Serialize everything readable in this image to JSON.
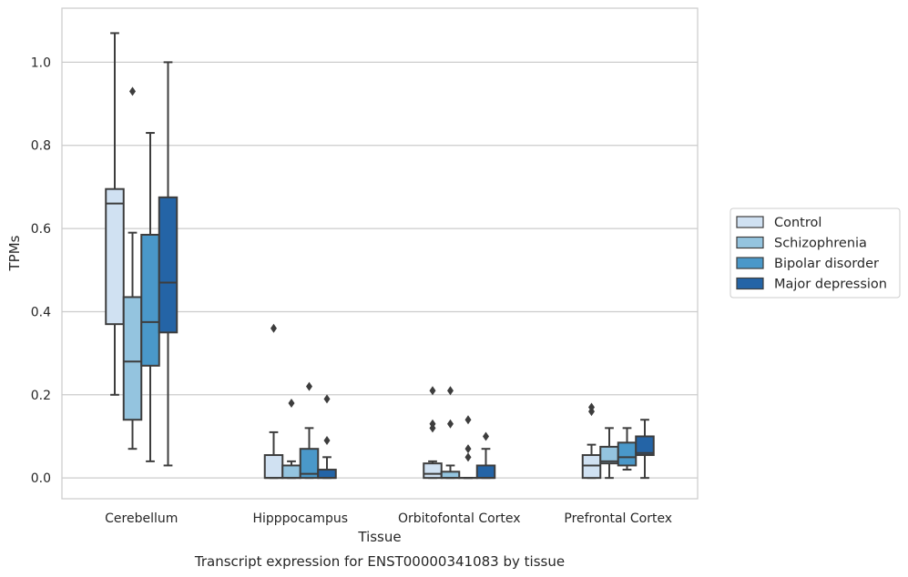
{
  "chart_data": {
    "type": "box",
    "title": "",
    "caption": "Transcript expression for ENST00000341083 by tissue",
    "xlabel": "Tissue",
    "ylabel": "TPMs",
    "ylim": [
      -0.05,
      1.13
    ],
    "yticks": [
      0.0,
      0.2,
      0.4,
      0.6,
      0.8,
      1.0
    ],
    "ytick_labels": [
      "0.0",
      "0.2",
      "0.4",
      "0.6",
      "0.8",
      "1.0"
    ],
    "grid": "horizontal",
    "legend_position": "outside-right",
    "categories": [
      "Cerebellum",
      "Hipppocampus",
      "Orbitofontal Cortex",
      "Prefrontal Cortex"
    ],
    "series": [
      {
        "name": "Control",
        "color": "#d0e1f2",
        "boxes": [
          {
            "whislo": 0.2,
            "q1": 0.37,
            "med": 0.66,
            "q3": 0.695,
            "whishi": 1.07,
            "fliers": []
          },
          {
            "whislo": 0.0,
            "q1": 0.0,
            "med": 0.0,
            "q3": 0.055,
            "whishi": 0.11,
            "fliers": [
              0.36
            ]
          },
          {
            "whislo": 0.0,
            "q1": 0.0,
            "med": 0.01,
            "q3": 0.035,
            "whishi": 0.04,
            "fliers": [
              0.12,
              0.13,
              0.21
            ]
          },
          {
            "whislo": 0.0,
            "q1": 0.0,
            "med": 0.03,
            "q3": 0.055,
            "whishi": 0.08,
            "fliers": [
              0.16,
              0.17
            ]
          }
        ]
      },
      {
        "name": "Schizophrenia",
        "color": "#94c4df",
        "boxes": [
          {
            "whislo": 0.07,
            "q1": 0.14,
            "med": 0.28,
            "q3": 0.435,
            "whishi": 0.59,
            "fliers": [
              0.93
            ]
          },
          {
            "whislo": 0.0,
            "q1": 0.0,
            "med": 0.0,
            "q3": 0.03,
            "whishi": 0.04,
            "fliers": [
              0.18
            ]
          },
          {
            "whislo": 0.0,
            "q1": 0.0,
            "med": 0.0,
            "q3": 0.015,
            "whishi": 0.03,
            "fliers": [
              0.13,
              0.21
            ]
          },
          {
            "whislo": 0.0,
            "q1": 0.035,
            "med": 0.04,
            "q3": 0.075,
            "whishi": 0.12,
            "fliers": []
          }
        ]
      },
      {
        "name": "Bipolar disorder",
        "color": "#4a98c9",
        "boxes": [
          {
            "whislo": 0.04,
            "q1": 0.27,
            "med": 0.375,
            "q3": 0.585,
            "whishi": 0.83,
            "fliers": []
          },
          {
            "whislo": 0.0,
            "q1": 0.0,
            "med": 0.01,
            "q3": 0.07,
            "whishi": 0.12,
            "fliers": [
              0.22
            ]
          },
          {
            "whislo": 0.0,
            "q1": 0.0,
            "med": 0.0,
            "q3": 0.0,
            "whishi": 0.0,
            "fliers": [
              0.05,
              0.07,
              0.14
            ]
          },
          {
            "whislo": 0.02,
            "q1": 0.03,
            "med": 0.05,
            "q3": 0.085,
            "whishi": 0.12,
            "fliers": []
          }
        ]
      },
      {
        "name": "Major depression",
        "color": "#2464a6",
        "boxes": [
          {
            "whislo": 0.03,
            "q1": 0.35,
            "med": 0.47,
            "q3": 0.675,
            "whishi": 1.0,
            "fliers": []
          },
          {
            "whislo": 0.0,
            "q1": 0.0,
            "med": 0.0,
            "q3": 0.02,
            "whishi": 0.05,
            "fliers": [
              0.09,
              0.19
            ]
          },
          {
            "whislo": 0.0,
            "q1": 0.0,
            "med": 0.0,
            "q3": 0.03,
            "whishi": 0.07,
            "fliers": [
              0.1
            ]
          },
          {
            "whislo": 0.0,
            "q1": 0.055,
            "med": 0.06,
            "q3": 0.1,
            "whishi": 0.14,
            "fliers": []
          }
        ]
      }
    ]
  }
}
